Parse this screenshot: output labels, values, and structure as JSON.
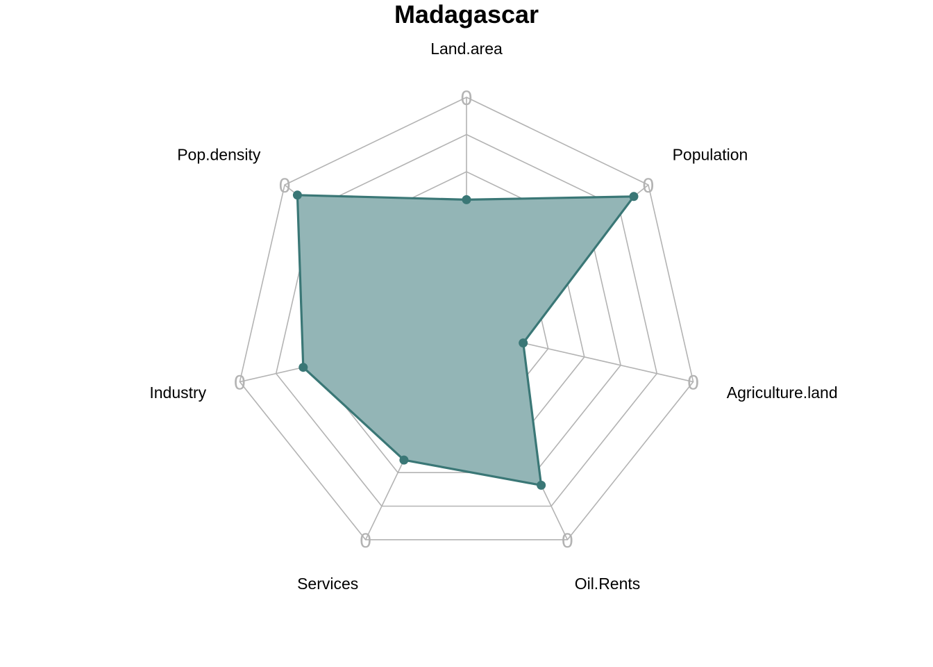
{
  "chart_data": {
    "type": "radar",
    "title": "Madagascar",
    "axes": [
      "Land.area",
      "Population",
      "Agriculture.land",
      "Oil.Rents",
      "Services",
      "Industry",
      "Pop.density"
    ],
    "range": [
      0,
      1
    ],
    "ring_count": 5,
    "tick_labels": [
      "0",
      "0",
      "0",
      "0",
      "0",
      "0",
      "0"
    ],
    "series": [
      {
        "values": [
          0.56,
          0.92,
          0.25,
          0.74,
          0.62,
          0.72,
          0.93
        ],
        "color": "#3a7776",
        "fill_color": "#93b5b6"
      }
    ]
  }
}
